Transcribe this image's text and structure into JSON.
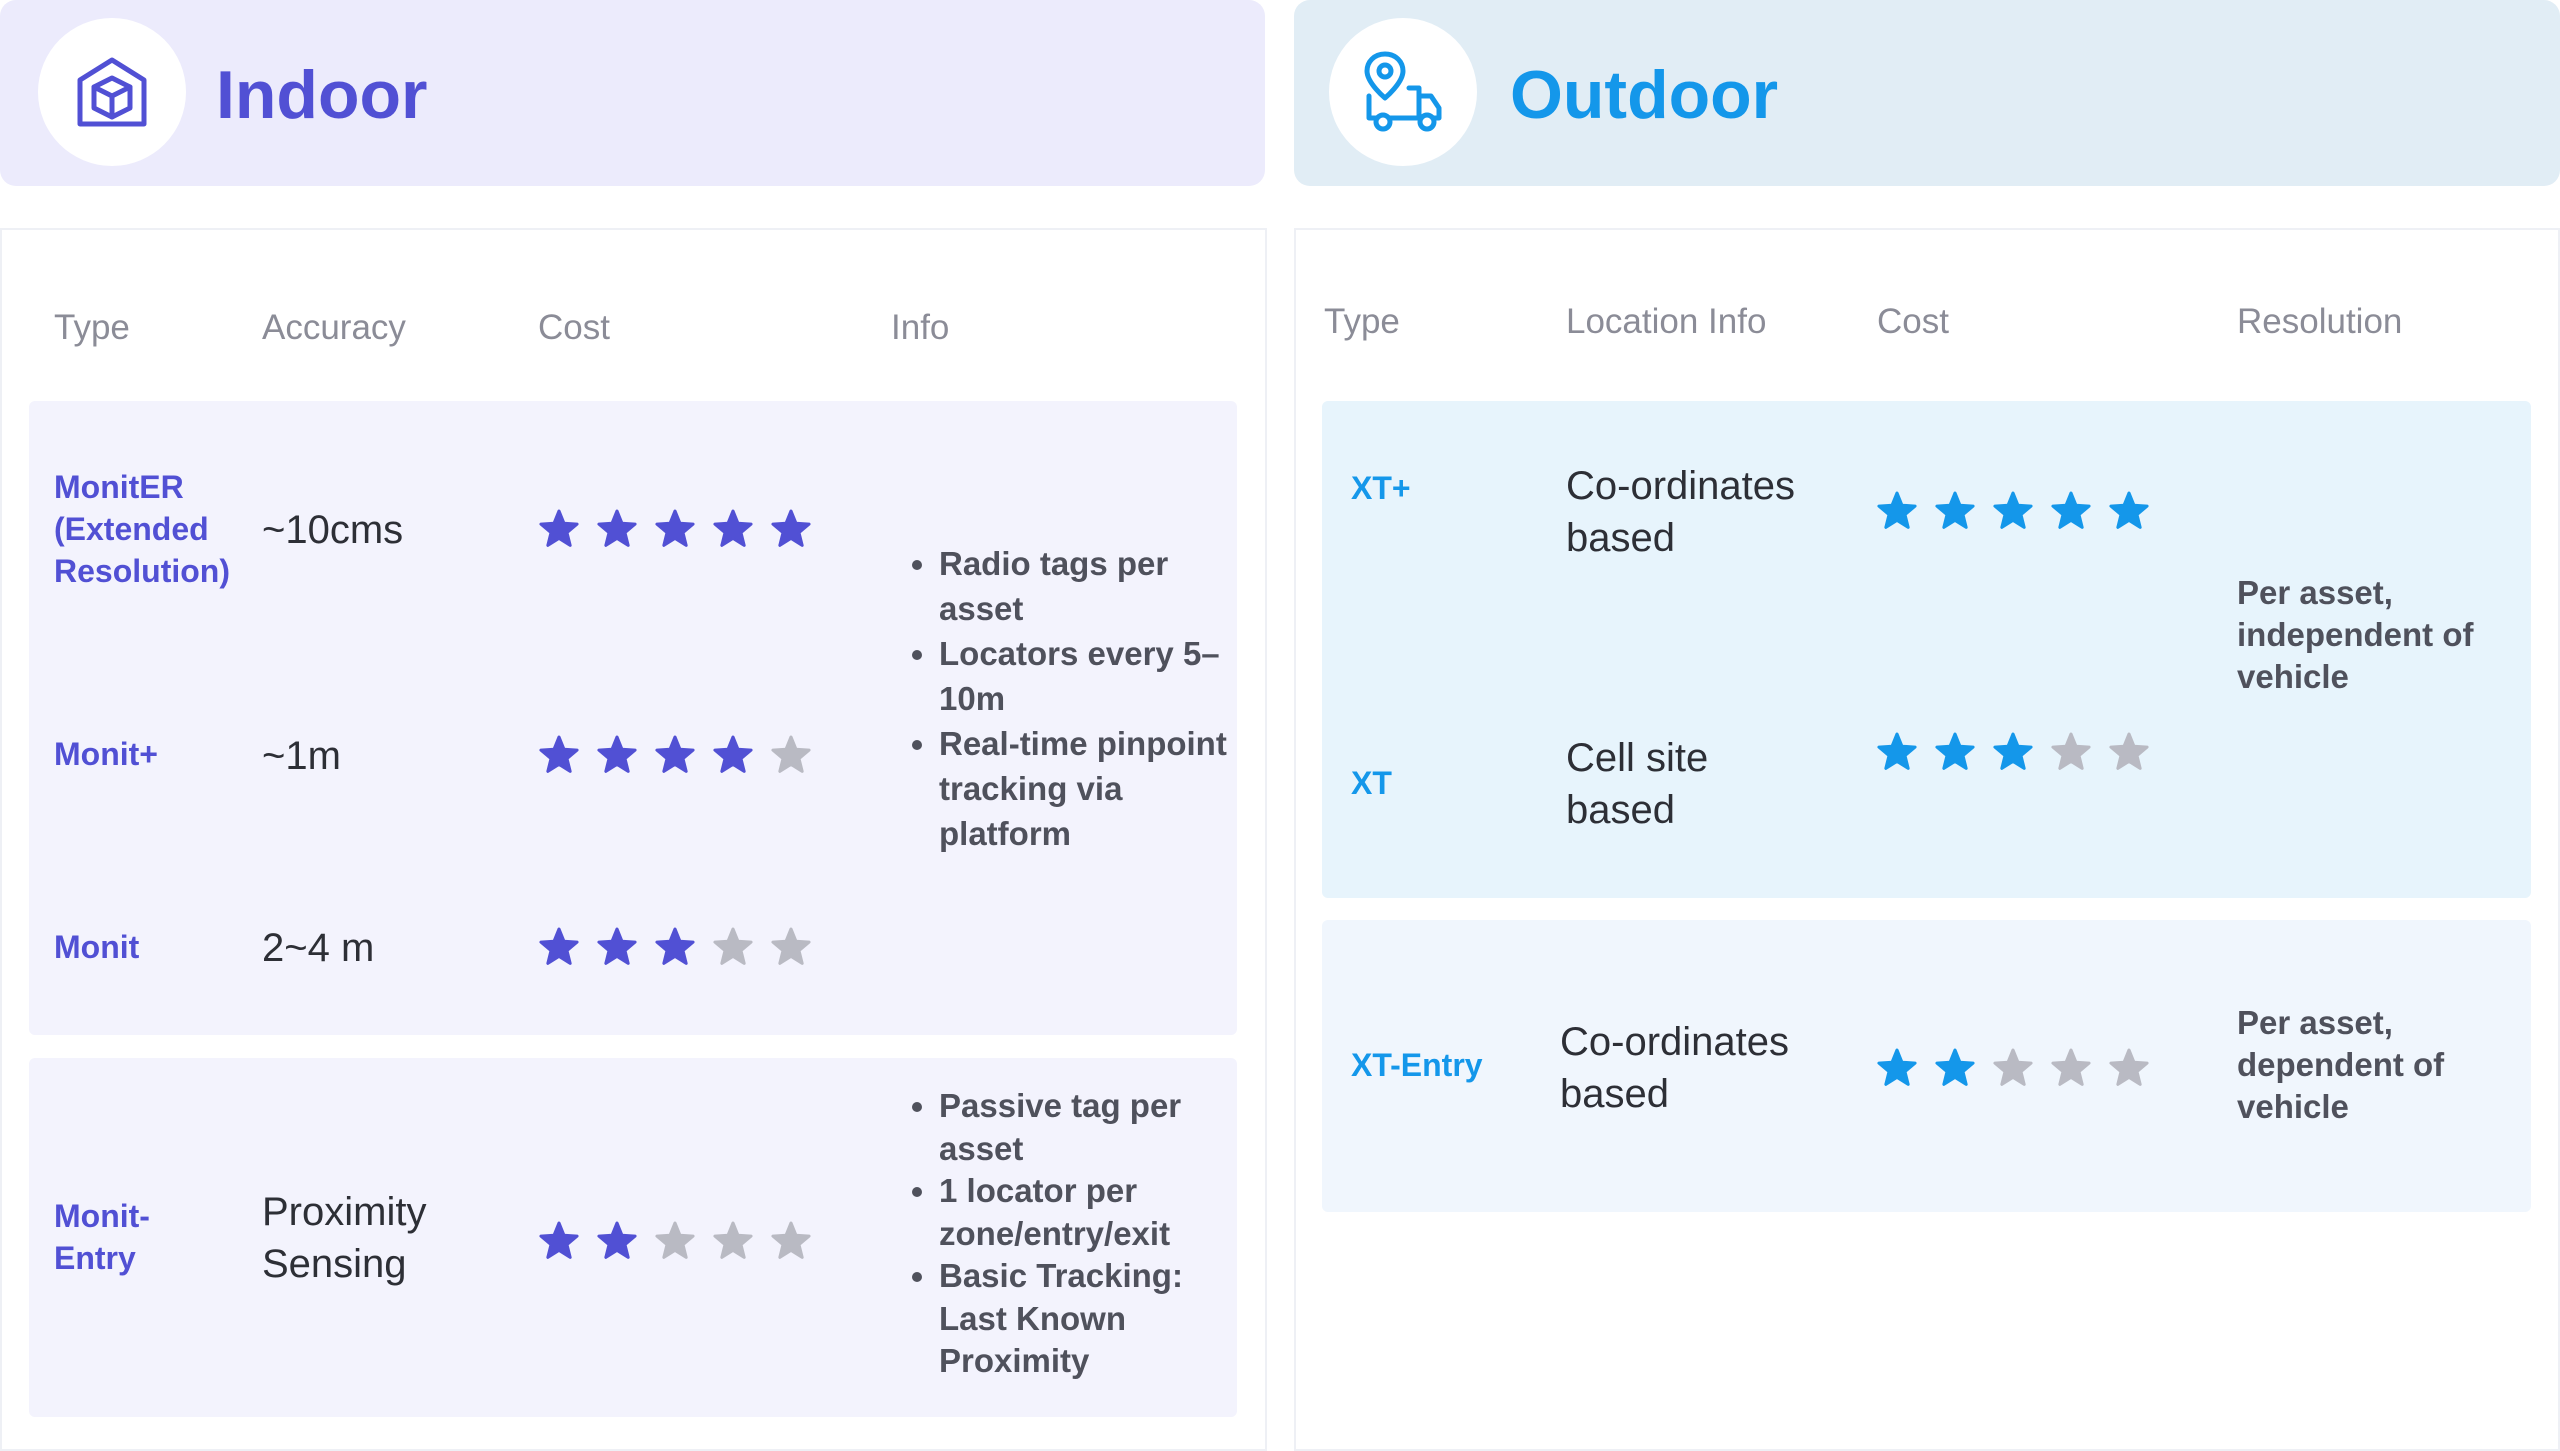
{
  "colors": {
    "indoor_accent": "#5150d4",
    "indoor_header_bg": "#ecebfc",
    "indoor_group_bg": "#f3f3fd",
    "outdoor_accent": "#1497ea",
    "outdoor_header_bg": "#e1edf5",
    "outdoor_group1_bg": "#e7f4fc",
    "outdoor_group2_bg": "#f0f6fd",
    "star_empty": "#b9bac3"
  },
  "indoor": {
    "title": "Indoor",
    "icon": "box-house-icon",
    "columns": {
      "type": "Type",
      "accuracy": "Accuracy",
      "cost": "Cost",
      "info": "Info"
    },
    "rows": [
      {
        "type": "MonitER (Extended Resolution)",
        "accuracy": "~10cms",
        "cost_stars": 5
      },
      {
        "type": "Monit+",
        "accuracy": "~1m",
        "cost_stars": 4
      },
      {
        "type": "Monit",
        "accuracy": "2~4 m",
        "cost_stars": 3
      },
      {
        "type": "Monit-Entry",
        "accuracy": "Proximity Sensing",
        "cost_stars": 2
      }
    ],
    "info_group1": [
      "Radio tags per asset",
      "Locators every 5–10m",
      "Real-time pinpoint tracking via platform"
    ],
    "info_group2": [
      "Passive tag per asset",
      "1 locator per zone/entry/exit",
      "Basic Tracking: Last Known Proximity"
    ]
  },
  "outdoor": {
    "title": "Outdoor",
    "icon": "delivery-truck-location-icon",
    "columns": {
      "type": "Type",
      "location": "Location Info",
      "cost": "Cost",
      "resolution": "Resolution"
    },
    "rows": [
      {
        "type": "XT+",
        "location": "Co-ordinates based",
        "cost_stars": 5
      },
      {
        "type": "XT",
        "location": "Cell site based",
        "cost_stars": 3
      },
      {
        "type": "XT-Entry",
        "location": "Co-ordinates based",
        "cost_stars": 2
      }
    ],
    "resolution_group1": "Per asset, independent of vehicle",
    "resolution_group2": "Per asset, dependent of vehicle"
  }
}
